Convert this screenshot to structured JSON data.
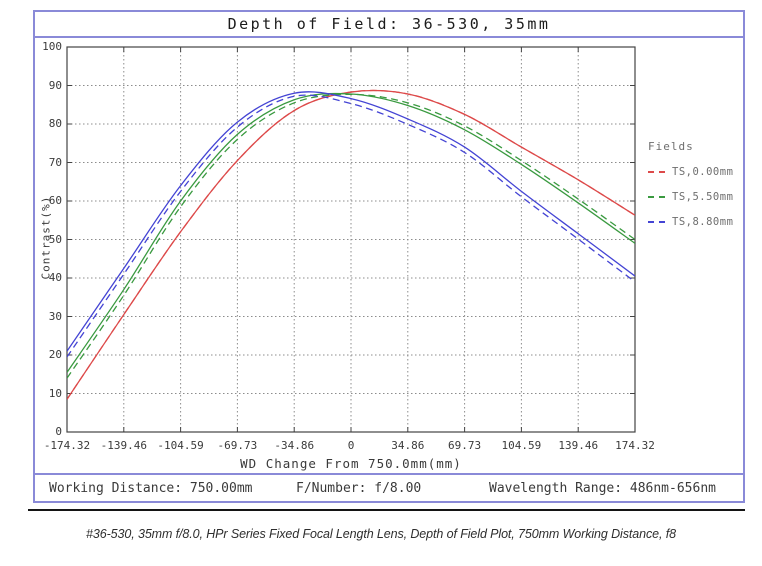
{
  "title": "Depth of Field: 36-530, 35mm",
  "chart_data": {
    "type": "line",
    "title": "Depth of Field: 36-530, 35mm",
    "xlabel": "WD Change From 750.0mm(mm)",
    "ylabel": "Contrast(%)",
    "xlim": [
      -174.32,
      174.32
    ],
    "ylim": [
      0,
      100
    ],
    "grid": true,
    "x_ticks": [
      -174.32,
      -139.46,
      -104.59,
      -69.73,
      -34.86,
      0,
      34.86,
      69.73,
      104.59,
      139.46,
      174.32
    ],
    "x_tick_labels": [
      "-174.32",
      "-139.46",
      "-104.59",
      "-69.73",
      "-34.86",
      "0",
      "34.86",
      "69.73",
      "104.59",
      "139.46",
      "174.32"
    ],
    "y_ticks": [
      0,
      10,
      20,
      30,
      40,
      50,
      60,
      70,
      80,
      90,
      100
    ],
    "x": [
      -174.32,
      -139.46,
      -104.59,
      -69.73,
      -34.86,
      0,
      34.86,
      69.73,
      104.59,
      139.46,
      174.32
    ],
    "series": [
      {
        "name": "T,0.00mm",
        "color": "#dd4a4a",
        "style": "solid",
        "values": [
          8.5,
          30.5,
          52.0,
          70.5,
          83.5,
          88.3,
          87.8,
          82.5,
          74.0,
          65.5,
          56.3
        ]
      },
      {
        "name": "S,0.00mm",
        "color": "#dd4a4a",
        "style": "dashed",
        "values": [
          8.5,
          30.5,
          52.0,
          70.5,
          83.5,
          88.3,
          87.8,
          82.5,
          74.0,
          65.5,
          56.3
        ]
      },
      {
        "name": "T,5.50mm",
        "color": "#3a9a40",
        "style": "solid",
        "values": [
          15.5,
          37.0,
          60.0,
          77.3,
          86.3,
          87.8,
          84.8,
          78.5,
          69.5,
          59.5,
          49.0
        ]
      },
      {
        "name": "S,5.50mm",
        "color": "#3a9a40",
        "style": "dashed",
        "values": [
          14.0,
          35.5,
          58.5,
          76.0,
          85.5,
          87.7,
          85.5,
          79.5,
          70.5,
          60.5,
          50.0
        ]
      },
      {
        "name": "T,8.80mm",
        "color": "#4444d4",
        "style": "solid",
        "values": [
          21.0,
          42.5,
          64.0,
          80.5,
          88.0,
          86.6,
          81.3,
          74.0,
          62.5,
          51.5,
          40.5
        ]
      },
      {
        "name": "S,8.80mm",
        "color": "#4444d4",
        "style": "dashed",
        "values": [
          19.5,
          41.0,
          62.5,
          79.2,
          87.2,
          85.3,
          79.9,
          72.6,
          61.1,
          50.1,
          39.0
        ]
      }
    ],
    "legend": {
      "title": "Fields",
      "position": "right-outside",
      "entries": [
        {
          "label": "TS,0.00mm",
          "color": "#dd4a4a"
        },
        {
          "label": "TS,5.50mm",
          "color": "#3a9a40"
        },
        {
          "label": "TS,8.80mm",
          "color": "#4444d4"
        }
      ]
    }
  },
  "footer": {
    "working_distance": "Working Distance: 750.00mm",
    "f_number": "F/Number: f/8.00",
    "wavelength_range": "Wavelength Range: 486nm-656nm"
  },
  "caption": "#36-530, 35mm f/8.0, HPr Series Fixed Focal Length Lens, Depth of Field Plot, 750mm Working Distance, f8",
  "colors": {
    "frame": "#8a8ad8",
    "grid": "#8c8c8c",
    "axis": "#444444",
    "separator": "#141414",
    "red": "#dd4a4a",
    "green": "#3a9a40",
    "blue": "#4444d4"
  }
}
